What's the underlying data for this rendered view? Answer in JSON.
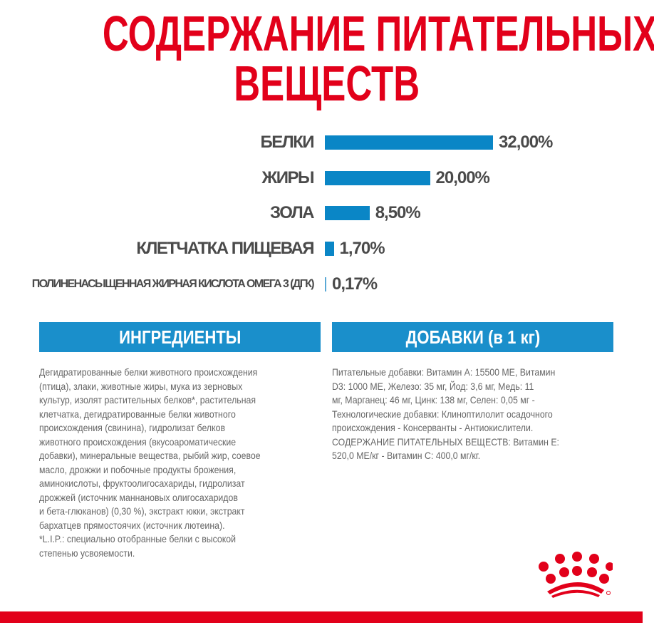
{
  "title": {
    "line1": "СОДЕРЖАНИЕ ПИТАТЕЛЬНЫХ",
    "line2": "ВЕЩЕСТВ"
  },
  "chart_data": {
    "type": "bar",
    "orientation": "horizontal",
    "categories": [
      "БЕЛКИ",
      "ЖИРЫ",
      "ЗОЛА",
      "КЛЕТЧАТКА ПИЩЕВАЯ",
      "ПОЛИНЕНАСЫЩЕННАЯ ЖИРНАЯ КИСЛОТА ОМЕГА 3 (ДГК)"
    ],
    "values": [
      32.0,
      20.0,
      8.5,
      1.7,
      0.17
    ],
    "labels": [
      "32,00%",
      "20,00%",
      "8,50%",
      "1,70%",
      "0,17%"
    ],
    "unit": "%",
    "bar_color": "#0a86c6"
  },
  "ingredients": {
    "heading": "ИНГРЕДИЕНТЫ",
    "lines": [
      "Дегидратированные белки животного происхождения",
      "(птица), злаки, животные жиры, мука из зерновых",
      "культур, изолят растительных белков*, растительная",
      "клетчатка, дегидратированные белки животного",
      "происхождения (свинина), гидролизат белков",
      "животного происхождения (вкусоароматические",
      "добавки), минеральные вещества, рыбий жир, соевое",
      "масло, дрожжи и побочные продукты брожения,",
      "аминокислоты, фруктоолигосахариды, гидролизат",
      "дрожжей (источник маннановых олигосахаридов",
      "и бета-глюканов) (0,30 %), экстракт юкки, экстракт",
      "бархатцев прямостоячих (источник лютеина).",
      "*L.I.P.: специально отобранные белки с высокой",
      "степенью усвояемости."
    ]
  },
  "additives": {
    "heading": "ДОБАВКИ (в 1 кг)",
    "lines": [
      "Питательные добавки: Витамин А: 15500 МЕ, Витамин",
      "D3: 1000 МЕ, Железо: 35 мг, Йод: 3,6 мг, Медь: 11",
      "мг, Марганец: 46 мг, Цинк: 138 мг, Селен: 0,05 мг -",
      "Технологические добавки: Клиноптилолит осадочного",
      "происхождения - Консерванты - Антиокислители.",
      "СОДЕРЖАНИЕ ПИТАТЕЛЬНЫХ ВЕЩЕСТВ: Витамин Е:",
      "520,0 МЕ/кг - Витамин С: 400,0 мг/кг."
    ]
  },
  "colors": {
    "brand_red": "#e2001a",
    "accent_blue": "#1a8fcb",
    "text_gray": "#4a4a4a"
  }
}
